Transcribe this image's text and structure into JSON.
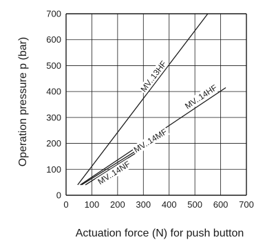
{
  "chart_data": {
    "type": "line",
    "title": "",
    "xlabel": "Actuation force (N) for push button",
    "ylabel": "Operation pressure p (bar)",
    "xlim": [
      0,
      700
    ],
    "ylim": [
      0,
      700
    ],
    "xticks": [
      0,
      100,
      200,
      300,
      400,
      500,
      600,
      700
    ],
    "yticks": [
      0,
      100,
      200,
      300,
      400,
      500,
      600,
      700
    ],
    "grid": true,
    "legend": "none",
    "series": [
      {
        "name": "MV..13HF",
        "x": [
          45,
          550
        ],
        "y": [
          40,
          700
        ]
      },
      {
        "name": "MV..14HF",
        "x": [
          55,
          620
        ],
        "y": [
          40,
          415
        ]
      },
      {
        "name": "MV..14MF",
        "x": [
          60,
          350
        ],
        "y": [
          40,
          220
        ]
      },
      {
        "name": "MV..14NF",
        "x": [
          75,
          330
        ],
        "y": [
          40,
          200
        ]
      }
    ],
    "line_color": "#1a1a1a"
  }
}
